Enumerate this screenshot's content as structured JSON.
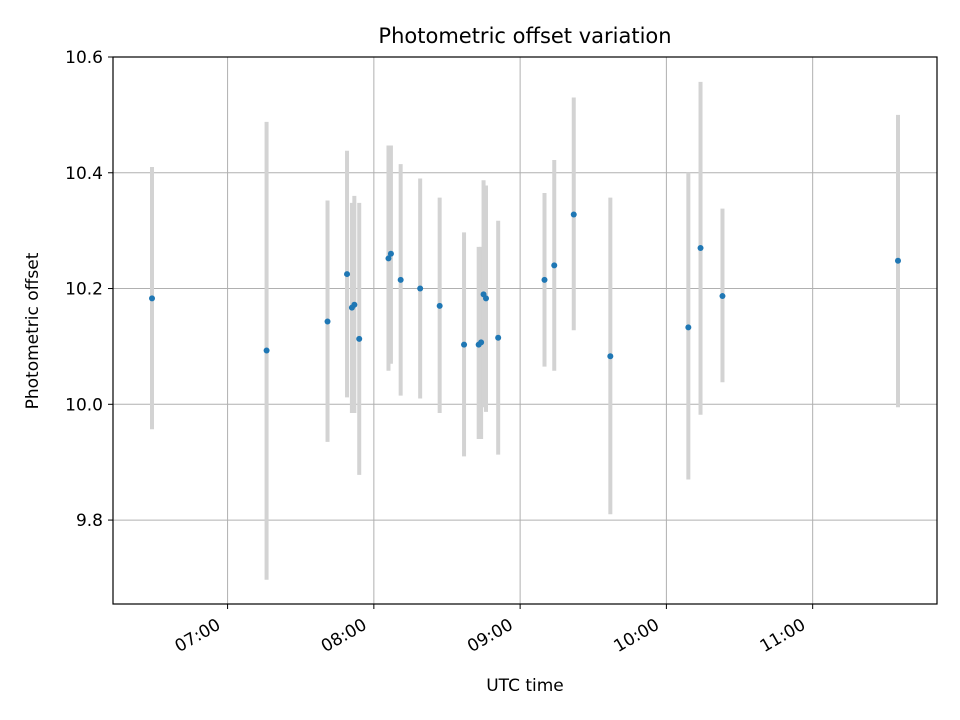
{
  "chart_data": {
    "type": "scatter",
    "title": "Photometric offset variation",
    "xlabel": "UTC time",
    "ylabel": "Photometric offset",
    "xlim": [
      "06:13",
      "11:51"
    ],
    "ylim": [
      9.655,
      10.6
    ],
    "x_ticks": [
      "07:00",
      "08:00",
      "09:00",
      "10:00",
      "11:00"
    ],
    "y_ticks": [
      9.8,
      10.0,
      10.2,
      10.4,
      10.6
    ],
    "y_tick_labels": [
      "9.8",
      "10.0",
      "10.2",
      "10.4",
      "10.6"
    ],
    "grid": true,
    "point_color": "#1f77b4",
    "errorbar_color": "#d3d3d3",
    "points": [
      {
        "time": "06:29",
        "y": 10.183,
        "low": 9.957,
        "high": 10.41
      },
      {
        "time": "07:16",
        "y": 10.093,
        "low": 9.697,
        "high": 10.488
      },
      {
        "time": "07:41",
        "y": 10.143,
        "low": 9.935,
        "high": 10.352
      },
      {
        "time": "07:49",
        "y": 10.225,
        "low": 10.012,
        "high": 10.438
      },
      {
        "time": "07:51",
        "y": 10.167,
        "low": 9.985,
        "high": 10.348
      },
      {
        "time": "07:52",
        "y": 10.172,
        "low": 9.985,
        "high": 10.36
      },
      {
        "time": "07:54",
        "y": 10.113,
        "low": 9.878,
        "high": 10.348
      },
      {
        "time": "08:06",
        "y": 10.252,
        "low": 10.058,
        "high": 10.447
      },
      {
        "time": "08:07",
        "y": 10.26,
        "low": 10.07,
        "high": 10.447
      },
      {
        "time": "08:11",
        "y": 10.215,
        "low": 10.015,
        "high": 10.415
      },
      {
        "time": "08:19",
        "y": 10.2,
        "low": 10.01,
        "high": 10.39
      },
      {
        "time": "08:27",
        "y": 10.17,
        "low": 9.985,
        "high": 10.357
      },
      {
        "time": "08:37",
        "y": 10.103,
        "low": 9.91,
        "high": 10.297
      },
      {
        "time": "08:43",
        "y": 10.103,
        "low": 9.94,
        "high": 10.272
      },
      {
        "time": "08:44",
        "y": 10.107,
        "low": 9.94,
        "high": 10.272
      },
      {
        "time": "08:45",
        "y": 10.19,
        "low": 9.995,
        "high": 10.387
      },
      {
        "time": "08:46",
        "y": 10.183,
        "low": 9.987,
        "high": 10.378
      },
      {
        "time": "08:51",
        "y": 10.115,
        "low": 9.913,
        "high": 10.317
      },
      {
        "time": "09:10",
        "y": 10.215,
        "low": 10.065,
        "high": 10.365
      },
      {
        "time": "09:14",
        "y": 10.24,
        "low": 10.058,
        "high": 10.422
      },
      {
        "time": "09:22",
        "y": 10.328,
        "low": 10.128,
        "high": 10.53
      },
      {
        "time": "09:37",
        "y": 10.083,
        "low": 9.81,
        "high": 10.357
      },
      {
        "time": "10:09",
        "y": 10.133,
        "low": 9.87,
        "high": 10.4
      },
      {
        "time": "10:14",
        "y": 10.27,
        "low": 9.982,
        "high": 10.557
      },
      {
        "time": "10:23",
        "y": 10.187,
        "low": 10.038,
        "high": 10.338
      },
      {
        "time": "11:35",
        "y": 10.248,
        "low": 9.995,
        "high": 10.5
      }
    ]
  }
}
